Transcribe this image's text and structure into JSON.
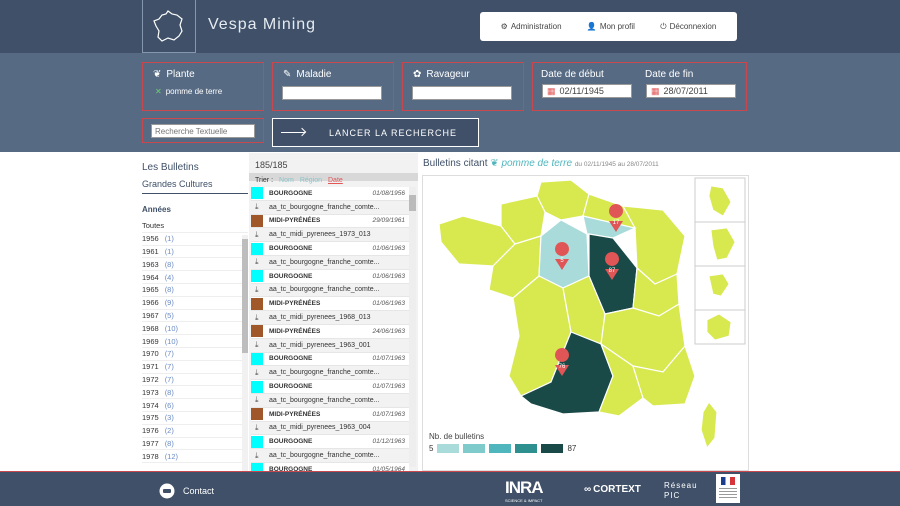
{
  "app": {
    "title": "Vespa Mining"
  },
  "usermenu": {
    "admin": "Administration",
    "profile": "Mon profil",
    "logout": "Déconnexion"
  },
  "filters": {
    "plante": {
      "label": "Plante",
      "value": "pomme de terre"
    },
    "maladie": {
      "label": "Maladie",
      "value": ""
    },
    "ravageur": {
      "label": "Ravageur",
      "value": ""
    },
    "date_debut": {
      "label": "Date de début",
      "value": "02/11/1945"
    },
    "date_fin": {
      "label": "Date de fin",
      "value": "28/07/2011"
    },
    "search_placeholder": "Recherche Textuelle",
    "launch": "LANCER LA RECHERCHE"
  },
  "left": {
    "title": "Les Bulletins",
    "subtitle": "Grandes Cultures",
    "years_heading": "Années",
    "all": "Toutes",
    "years": [
      {
        "y": "1956",
        "c": "(1)"
      },
      {
        "y": "1961",
        "c": "(1)"
      },
      {
        "y": "1963",
        "c": "(8)"
      },
      {
        "y": "1964",
        "c": "(4)"
      },
      {
        "y": "1965",
        "c": "(8)"
      },
      {
        "y": "1966",
        "c": "(9)"
      },
      {
        "y": "1967",
        "c": "(5)"
      },
      {
        "y": "1968",
        "c": "(10)"
      },
      {
        "y": "1969",
        "c": "(10)"
      },
      {
        "y": "1970",
        "c": "(7)"
      },
      {
        "y": "1971",
        "c": "(7)"
      },
      {
        "y": "1972",
        "c": "(7)"
      },
      {
        "y": "1973",
        "c": "(8)"
      },
      {
        "y": "1974",
        "c": "(6)"
      },
      {
        "y": "1975",
        "c": "(3)"
      },
      {
        "y": "1976",
        "c": "(2)"
      },
      {
        "y": "1977",
        "c": "(8)"
      },
      {
        "y": "1978",
        "c": "(12)"
      }
    ]
  },
  "mid": {
    "count": "185/185",
    "sort_label": "Trier :",
    "sort_nom": "Nom",
    "sort_region": "Région",
    "sort_date": "Date",
    "bulletins": [
      {
        "region": "BOURGOGNE",
        "date": "01/08/1956",
        "file": "aa_tc_bourgogne_franche_comte...",
        "color": "#00ffff"
      },
      {
        "region": "MIDI-PYRÉNÉES",
        "date": "29/09/1961",
        "file": "aa_tc_midi_pyrenees_1973_013",
        "color": "#a0582a"
      },
      {
        "region": "BOURGOGNE",
        "date": "01/06/1963",
        "file": "aa_tc_bourgogne_franche_comte...",
        "color": "#00ffff"
      },
      {
        "region": "BOURGOGNE",
        "date": "01/06/1963",
        "file": "aa_tc_bourgogne_franche_comte...",
        "color": "#00ffff"
      },
      {
        "region": "MIDI-PYRÉNÉES",
        "date": "01/06/1963",
        "file": "aa_tc_midi_pyrenees_1968_013",
        "color": "#a0582a"
      },
      {
        "region": "MIDI-PYRÉNÉES",
        "date": "24/06/1963",
        "file": "aa_tc_midi_pyrenees_1963_001",
        "color": "#a0582a"
      },
      {
        "region": "BOURGOGNE",
        "date": "01/07/1963",
        "file": "aa_tc_bourgogne_franche_comte...",
        "color": "#00ffff"
      },
      {
        "region": "BOURGOGNE",
        "date": "01/07/1963",
        "file": "aa_tc_bourgogne_franche_comte...",
        "color": "#00ffff"
      },
      {
        "region": "MIDI-PYRÉNÉES",
        "date": "01/07/1963",
        "file": "aa_tc_midi_pyrenees_1963_004",
        "color": "#a0582a"
      },
      {
        "region": "BOURGOGNE",
        "date": "01/12/1963",
        "file": "aa_tc_bourgogne_franche_comte...",
        "color": "#00ffff"
      },
      {
        "region": "BOURGOGNE",
        "date": "01/05/1964",
        "file": "",
        "color": "#00ffff"
      }
    ]
  },
  "right": {
    "title": "Bulletins citant",
    "plant": "pomme de terre",
    "dates": "du 02/11/1945 au 28/07/2011",
    "legend_title": "Nb. de bulletins",
    "legend_min": "5",
    "legend_max": "87",
    "legend_colors": [
      "#a8dbd9",
      "#7fcaca",
      "#4fb6bd",
      "#2e8f8f",
      "#1a4a48"
    ],
    "markers": [
      "17",
      "5",
      "87",
      "76"
    ],
    "colors": {
      "base": "#d8e84f",
      "light": "#a8dbd9",
      "dark": "#1a4a48"
    }
  },
  "footer": {
    "contact": "Contact",
    "inra": "INRA",
    "inra_sub": "SCIENCE & IMPACT",
    "cortext": "CORTEXT",
    "reseau1": "Réseau",
    "reseau2": "PIC"
  }
}
